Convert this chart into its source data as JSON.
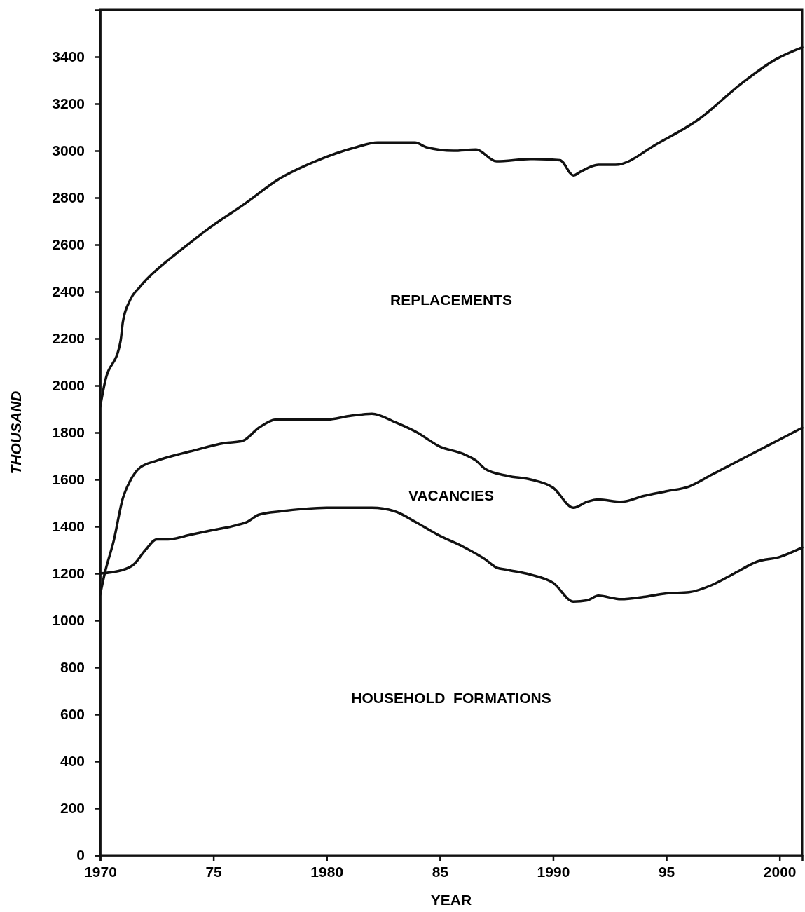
{
  "chart_data": {
    "type": "line",
    "xlabel": "YEAR",
    "ylabel": "THOUSAND",
    "xlim": [
      1970,
      2001
    ],
    "ylim": [
      0,
      3600
    ],
    "xticks": [
      1970,
      {
        "value": 1975,
        "label": "75"
      },
      1980,
      {
        "value": 1985,
        "label": "85"
      },
      1990,
      {
        "value": 1995,
        "label": "95"
      },
      2000
    ],
    "yticks": [
      0,
      200,
      400,
      600,
      800,
      1000,
      1200,
      1400,
      1600,
      1800,
      2000,
      2200,
      2400,
      2600,
      2800,
      3000,
      3200,
      3400
    ],
    "annotations": [
      "REPLACEMENTS",
      "VACANCIES",
      "HOUSEHOLD  FORMATIONS"
    ],
    "grid": false,
    "legend": false,
    "line_style": "solid",
    "marker": "none",
    "series": [
      {
        "color": "#111111",
        "x": [
          1970,
          1970.2,
          1970.9,
          1971,
          1971.3,
          1971.75,
          1972.7,
          1973.6,
          1974.8,
          1976.4,
          1977.9,
          1979.5,
          1981.3,
          1982.25,
          1983.9,
          1984.4,
          1985.6,
          1986.6,
          1987.5,
          1989,
          1990.3,
          1990.9,
          1991.2,
          1992,
          1992.75,
          1994.6,
          1996.45,
          1998.3,
          1999.85,
          2001
        ],
        "values": [
          1910,
          2010,
          2190,
          2270,
          2360,
          2420,
          2510,
          2580,
          2670,
          2775,
          2880,
          2955,
          3015,
          3035,
          3035,
          3015,
          3000,
          3005,
          2955,
          2965,
          2960,
          2895,
          2910,
          2940,
          2940,
          3030,
          3135,
          3285,
          3390,
          3440
        ]
      },
      {
        "color": "#111111",
        "x": [
          1970,
          1970.2,
          1970.6,
          1971,
          1971.3,
          1971.75,
          1972.5,
          1974,
          1975.5,
          1976.3,
          1977,
          1977.8,
          1979,
          1980,
          1981,
          1982,
          1983,
          1984,
          1985,
          1986,
          1986.6,
          1987,
          1988,
          1989,
          1990,
          1990.9,
          1991.5,
          1992,
          1993,
          1994,
          1995,
          1996,
          1997,
          1998,
          1999,
          2000,
          2001
        ],
        "values": [
          1110,
          1200,
          1340,
          1520,
          1590,
          1650,
          1680,
          1720,
          1755,
          1765,
          1820,
          1855,
          1855,
          1855,
          1870,
          1880,
          1845,
          1800,
          1740,
          1710,
          1680,
          1645,
          1615,
          1600,
          1565,
          1480,
          1505,
          1515,
          1505,
          1530,
          1550,
          1570,
          1620,
          1670,
          1720,
          1770,
          1820
        ]
      },
      {
        "color": "#111111",
        "x": [
          1970,
          1971,
          1971.5,
          1972,
          1972.5,
          1973,
          1974,
          1975,
          1976,
          1976.5,
          1977,
          1978,
          1979,
          1980,
          1981,
          1982,
          1983,
          1984,
          1985,
          1986,
          1987,
          1987.5,
          1988,
          1989,
          1990,
          1990.9,
          1991.5,
          1992,
          1993,
          1994,
          1995,
          1996,
          1997,
          1998,
          1999,
          2000,
          2001
        ],
        "values": [
          1200,
          1215,
          1240,
          1300,
          1345,
          1345,
          1365,
          1385,
          1405,
          1420,
          1450,
          1465,
          1475,
          1480,
          1480,
          1480,
          1465,
          1415,
          1360,
          1315,
          1260,
          1225,
          1215,
          1195,
          1160,
          1080,
          1085,
          1105,
          1090,
          1100,
          1115,
          1120,
          1150,
          1200,
          1250,
          1270,
          1310
        ]
      }
    ]
  }
}
